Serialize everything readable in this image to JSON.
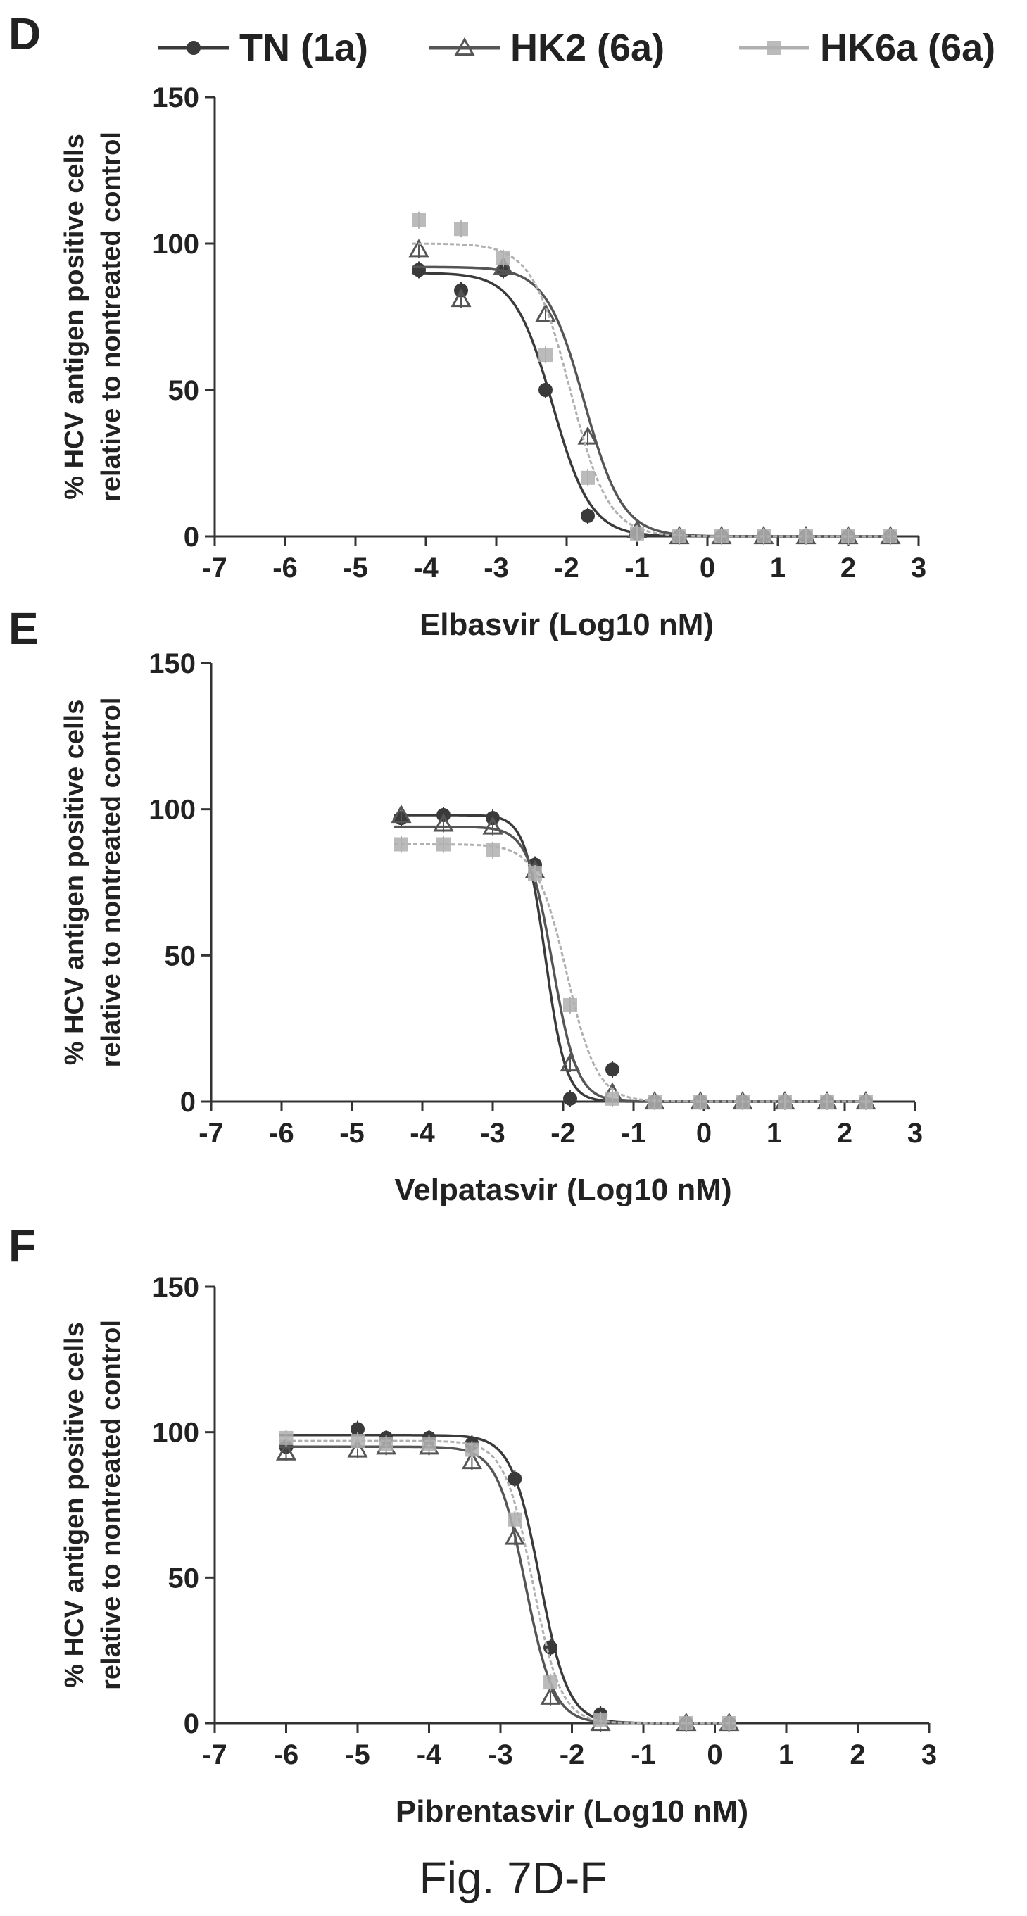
{
  "legend": [
    {
      "name": "TN (1a)",
      "marker": "circle",
      "color": "#3a3a3a"
    },
    {
      "name": "HK2 (6a)",
      "marker": "triangle",
      "color": "#555555"
    },
    {
      "name": "HK6a (6a)",
      "marker": "square",
      "color": "#b0b0b0"
    }
  ],
  "caption": "Fig. 7D-F",
  "chart_data": [
    {
      "panel": "D",
      "type": "scatter",
      "title": "",
      "xlabel": "Elbasvir (Log10 nM)",
      "ylabel": [
        "% HCV antigen positive cells",
        "relative to nontreated control"
      ],
      "xlim": [
        -7,
        3
      ],
      "ylim": [
        0,
        150
      ],
      "xticks": [
        -7,
        -6,
        -5,
        -4,
        -3,
        -2,
        -1,
        0,
        1,
        2,
        3
      ],
      "yticks": [
        0,
        50,
        100,
        150
      ],
      "grid": false,
      "series": [
        {
          "name": "TN (1a)",
          "x": [
            -4.1,
            -3.5,
            -2.9,
            -2.3,
            -1.7,
            -1.0,
            -0.4,
            0.2,
            0.8,
            1.4,
            2.0,
            2.6
          ],
          "y": [
            91,
            84,
            91,
            50,
            7,
            1,
            0,
            0,
            0,
            0,
            0,
            0
          ],
          "fit": {
            "top": 90,
            "bottom": 0,
            "logEC50": -2.2,
            "hill": 1.6
          }
        },
        {
          "name": "HK2 (6a)",
          "x": [
            -4.1,
            -3.5,
            -2.9,
            -2.3,
            -1.7,
            -1.0,
            -0.4,
            0.2,
            0.8,
            1.4,
            2.0,
            2.6
          ],
          "y": [
            98,
            81,
            92,
            76,
            34,
            2,
            0,
            0,
            0,
            0,
            0,
            0
          ],
          "fit": {
            "top": 92,
            "bottom": 0,
            "logEC50": -1.75,
            "hill": 1.6
          }
        },
        {
          "name": "HK6a (6a)",
          "x": [
            -4.1,
            -3.5,
            -2.9,
            -2.3,
            -1.7,
            -1.0,
            -0.4,
            0.2,
            0.8,
            1.4,
            2.0,
            2.6
          ],
          "y": [
            108,
            105,
            95,
            62,
            20,
            1,
            0,
            0,
            0,
            0,
            0,
            0
          ],
          "fit": {
            "top": 100,
            "bottom": 0,
            "logEC50": -1.95,
            "hill": 1.6
          }
        }
      ]
    },
    {
      "panel": "E",
      "type": "scatter",
      "title": "",
      "xlabel": "Velpatasvir (Log10 nM)",
      "ylabel": [
        "% HCV antigen positive cells",
        "relative to nontreated control"
      ],
      "xlim": [
        -7,
        3
      ],
      "ylim": [
        0,
        150
      ],
      "xticks": [
        -7,
        -6,
        -5,
        -4,
        -3,
        -2,
        -1,
        0,
        1,
        2,
        3
      ],
      "yticks": [
        0,
        50,
        100,
        150
      ],
      "grid": false,
      "series": [
        {
          "name": "TN (1a)",
          "x": [
            -4.3,
            -3.7,
            -3.0,
            -2.4,
            -1.9,
            -1.3,
            -0.7,
            -0.05,
            0.55,
            1.15,
            1.75,
            2.3
          ],
          "y": [
            97,
            98,
            97,
            81,
            1,
            11,
            0,
            0,
            0,
            0,
            0,
            0
          ],
          "fit": {
            "top": 98,
            "bottom": 0,
            "logEC50": -2.25,
            "hill": 3.0
          }
        },
        {
          "name": "HK2 (6a)",
          "x": [
            -4.3,
            -3.7,
            -3.0,
            -2.4,
            -1.9,
            -1.3,
            -0.7,
            -0.05,
            0.55,
            1.15,
            1.75,
            2.3
          ],
          "y": [
            98,
            95,
            94,
            79,
            13,
            3,
            0,
            0,
            0,
            0,
            0,
            0
          ],
          "fit": {
            "top": 94,
            "bottom": 0,
            "logEC50": -2.15,
            "hill": 2.5
          }
        },
        {
          "name": "HK6a (6a)",
          "x": [
            -4.3,
            -3.7,
            -3.0,
            -2.4,
            -1.9,
            -1.3,
            -0.7,
            -0.05,
            0.55,
            1.15,
            1.75,
            2.3
          ],
          "y": [
            88,
            88,
            86,
            78,
            33,
            1,
            0,
            0,
            0,
            0,
            0,
            0
          ],
          "fit": {
            "top": 88,
            "bottom": 0,
            "logEC50": -1.95,
            "hill": 2.0
          }
        }
      ]
    },
    {
      "panel": "F",
      "type": "scatter",
      "title": "",
      "xlabel": "Pibrentasvir (Log10 nM)",
      "ylabel": [
        "% HCV antigen positive cells",
        "relative to nontreated control"
      ],
      "xlim": [
        -7,
        3
      ],
      "ylim": [
        0,
        150
      ],
      "xticks": [
        -7,
        -6,
        -5,
        -4,
        -3,
        -2,
        -1,
        0,
        1,
        2,
        3
      ],
      "yticks": [
        0,
        50,
        100,
        150
      ],
      "grid": false,
      "series": [
        {
          "name": "TN (1a)",
          "x": [
            -6.0,
            -5.0,
            -4.6,
            -4.0,
            -3.4,
            -2.8,
            -2.3,
            -1.6,
            -0.4,
            0.2
          ],
          "y": [
            95,
            101,
            98,
            98,
            96,
            84,
            26,
            3,
            0,
            0
          ],
          "fit": {
            "top": 99,
            "bottom": 0,
            "logEC50": -2.45,
            "hill": 2.2
          }
        },
        {
          "name": "HK2 (6a)",
          "x": [
            -6.0,
            -5.0,
            -4.6,
            -4.0,
            -3.4,
            -2.8,
            -2.3,
            -1.6,
            -0.4,
            0.2
          ],
          "y": [
            93,
            94,
            95,
            95,
            90,
            64,
            9,
            0,
            0,
            0
          ],
          "fit": {
            "top": 95,
            "bottom": 0,
            "logEC50": -2.65,
            "hill": 2.2
          }
        },
        {
          "name": "HK6a (6a)",
          "x": [
            -6.0,
            -5.0,
            -4.6,
            -4.0,
            -3.4,
            -2.8,
            -2.3,
            -1.6,
            -0.4,
            0.2
          ],
          "y": [
            98,
            97,
            96,
            96,
            94,
            70,
            14,
            1,
            0,
            0
          ],
          "fit": {
            "top": 97,
            "bottom": 0,
            "logEC50": -2.55,
            "hill": 2.2
          }
        }
      ]
    }
  ]
}
